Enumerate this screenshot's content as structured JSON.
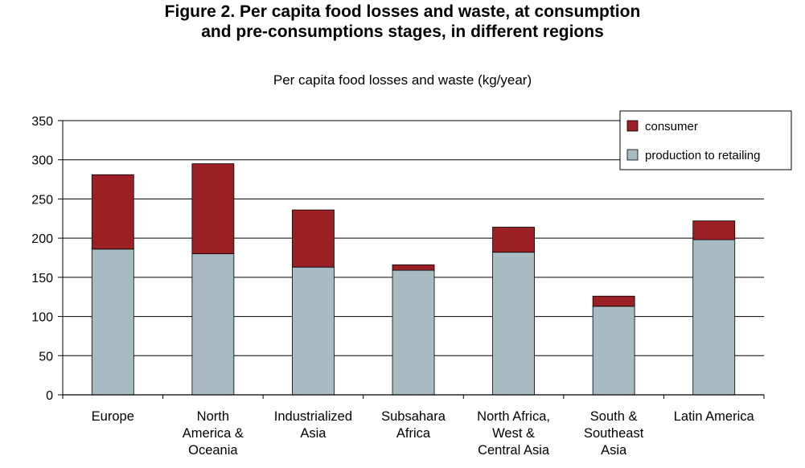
{
  "title_lines": [
    "Figure 2.  Per capita food losses and waste, at consumption",
    "and pre-consumptions stages, in different regions"
  ],
  "colors": {
    "consumer": "#9b2025",
    "production": "#a8bbc3",
    "axis": "#000000"
  },
  "chart_data": {
    "type": "bar",
    "stacked": true,
    "title": "Per capita food losses and waste (kg/year)",
    "xlabel": "",
    "ylabel": "",
    "categories": [
      [
        "Europe"
      ],
      [
        "North",
        "America &",
        "Oceania"
      ],
      [
        "Industrialized",
        "Asia"
      ],
      [
        "Subsahara",
        "Africa"
      ],
      [
        "North Africa,",
        "West &",
        "Central Asia"
      ],
      [
        "South &",
        "Southeast",
        "Asia"
      ],
      [
        "Latin America"
      ]
    ],
    "series": [
      {
        "name": "production to retailing",
        "values": [
          186,
          180,
          163,
          159,
          182,
          113,
          198
        ]
      },
      {
        "name": "consumer",
        "values": [
          95,
          115,
          73,
          7,
          32,
          13,
          24
        ]
      }
    ],
    "ylim": [
      0,
      350
    ],
    "yticks": [
      0,
      50,
      100,
      150,
      200,
      250,
      300,
      350
    ],
    "grid": true,
    "legend_position": "top-right"
  }
}
